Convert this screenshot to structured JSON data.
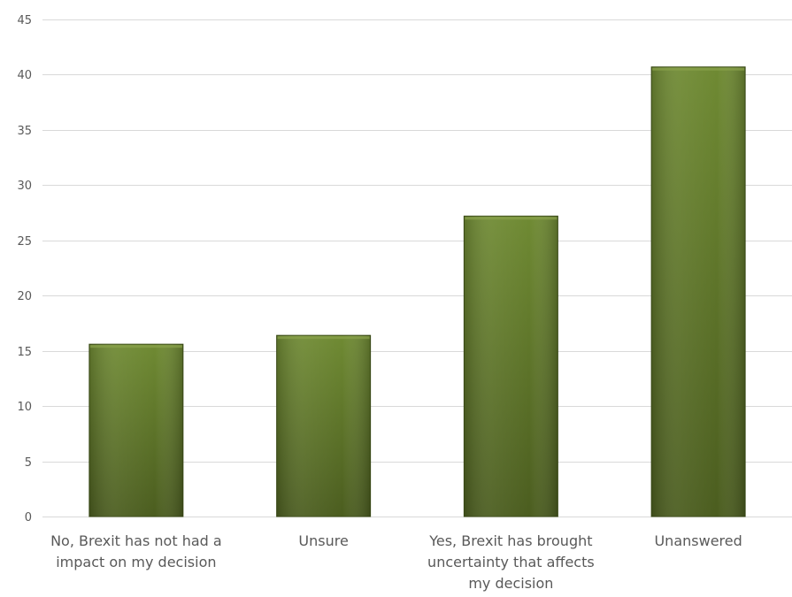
{
  "chart_data": {
    "type": "bar",
    "categories": [
      "No, Brexit has not had a impact on my decision",
      "Unsure",
      "Yes, Brexit has brought uncertainty that affects my decision",
      "Unanswered"
    ],
    "category_lines": [
      [
        "No, Brexit has not had a",
        "impact on my decision"
      ],
      [
        "Unsure"
      ],
      [
        "Yes, Brexit has brought",
        "uncertainty that affects",
        "my decision"
      ],
      [
        "Unanswered"
      ]
    ],
    "values": [
      15.6,
      16.4,
      27.2,
      40.7
    ],
    "ylim": [
      0,
      45
    ],
    "yticks": [
      "0",
      "5",
      "10",
      "15",
      "20",
      "25",
      "30",
      "35",
      "40",
      "45"
    ],
    "title": "",
    "xlabel": "",
    "ylabel": "",
    "grid": true,
    "legend": "none",
    "colors": {
      "bar_top": "#6f8a33",
      "bar_bottom": "#4b5d1f",
      "bar_edge": "#3e4f18",
      "grid": "#d9d9d9",
      "axis_text": "#595959"
    }
  }
}
